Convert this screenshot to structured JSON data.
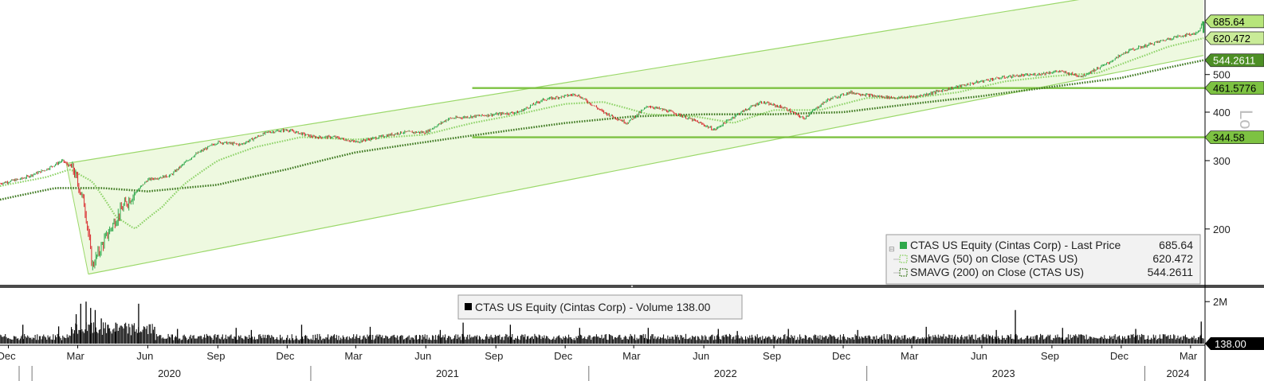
{
  "chart_data": [
    {
      "type": "line",
      "title": "",
      "xlabel": "",
      "ylabel": "",
      "y_scale": "log",
      "ylim": [
        145,
        760
      ],
      "y_ticks": [
        200,
        300,
        400,
        500
      ],
      "grid": false,
      "legend_position": "bottom-right",
      "x_range": [
        "2019-11-20",
        "2024-03-20"
      ],
      "x_month_ticks": [
        {
          "label": "Dec",
          "date": "2019-12-01"
        },
        {
          "label": "Mar",
          "date": "2020-03-01"
        },
        {
          "label": "Jun",
          "date": "2020-06-01"
        },
        {
          "label": "Sep",
          "date": "2020-09-01"
        },
        {
          "label": "Dec",
          "date": "2020-12-01"
        },
        {
          "label": "Mar",
          "date": "2021-03-01"
        },
        {
          "label": "Jun",
          "date": "2021-06-01"
        },
        {
          "label": "Sep",
          "date": "2021-09-01"
        },
        {
          "label": "Dec",
          "date": "2021-12-01"
        },
        {
          "label": "Mar",
          "date": "2022-03-01"
        },
        {
          "label": "Jun",
          "date": "2022-06-01"
        },
        {
          "label": "Sep",
          "date": "2022-09-01"
        },
        {
          "label": "Dec",
          "date": "2022-12-01"
        },
        {
          "label": "Mar",
          "date": "2023-03-01"
        },
        {
          "label": "Jun",
          "date": "2023-06-01"
        },
        {
          "label": "Sep",
          "date": "2023-09-01"
        },
        {
          "label": "Dec",
          "date": "2023-12-01"
        },
        {
          "label": "Mar",
          "date": "2024-03-01"
        }
      ],
      "x_year_labels": [
        {
          "label": "2020",
          "date": "2020-07-01"
        },
        {
          "label": "2021",
          "date": "2021-07-01"
        },
        {
          "label": "2022",
          "date": "2022-07-01"
        },
        {
          "label": "2023",
          "date": "2023-07-01"
        },
        {
          "label": "2024",
          "date": "2024-02-15"
        }
      ],
      "series": [
        {
          "name": "CTAS US Equity (Cintas Corp) - Last Price",
          "color": "#2ea84a",
          "last_value": "685.64",
          "points": [
            [
              "2019-11-20",
              262
            ],
            [
              "2019-12-20",
              270
            ],
            [
              "2020-01-20",
              285
            ],
            [
              "2020-02-10",
              300
            ],
            [
              "2020-02-24",
              285
            ],
            [
              "2020-03-10",
              230
            ],
            [
              "2020-03-20",
              160
            ],
            [
              "2020-04-10",
              195
            ],
            [
              "2020-05-01",
              230
            ],
            [
              "2020-06-01",
              268
            ],
            [
              "2020-07-01",
              275
            ],
            [
              "2020-08-01",
              310
            ],
            [
              "2020-09-01",
              335
            ],
            [
              "2020-10-01",
              330
            ],
            [
              "2020-11-05",
              355
            ],
            [
              "2020-12-01",
              360
            ],
            [
              "2021-01-05",
              345
            ],
            [
              "2021-02-01",
              345
            ],
            [
              "2021-03-01",
              335
            ],
            [
              "2021-04-01",
              345
            ],
            [
              "2021-05-01",
              355
            ],
            [
              "2021-06-01",
              355
            ],
            [
              "2021-07-01",
              385
            ],
            [
              "2021-08-01",
              390
            ],
            [
              "2021-09-01",
              395
            ],
            [
              "2021-10-01",
              400
            ],
            [
              "2021-11-01",
              430
            ],
            [
              "2021-12-15",
              445
            ],
            [
              "2022-01-20",
              400
            ],
            [
              "2022-02-20",
              375
            ],
            [
              "2022-03-20",
              415
            ],
            [
              "2022-04-20",
              400
            ],
            [
              "2022-05-20",
              380
            ],
            [
              "2022-06-15",
              360
            ],
            [
              "2022-07-15",
              395
            ],
            [
              "2022-08-15",
              425
            ],
            [
              "2022-09-15",
              410
            ],
            [
              "2022-10-10",
              385
            ],
            [
              "2022-11-10",
              430
            ],
            [
              "2022-12-10",
              450
            ],
            [
              "2023-01-10",
              440
            ],
            [
              "2023-02-10",
              435
            ],
            [
              "2023-03-10",
              440
            ],
            [
              "2023-04-10",
              455
            ],
            [
              "2023-05-10",
              470
            ],
            [
              "2023-06-10",
              485
            ],
            [
              "2023-07-10",
              495
            ],
            [
              "2023-08-10",
              500
            ],
            [
              "2023-09-10",
              510
            ],
            [
              "2023-10-10",
              495
            ],
            [
              "2023-11-10",
              530
            ],
            [
              "2023-12-10",
              575
            ],
            [
              "2024-01-10",
              600
            ],
            [
              "2024-02-10",
              625
            ],
            [
              "2024-03-10",
              640
            ],
            [
              "2024-03-18",
              685.64
            ]
          ]
        },
        {
          "name": "SMAVG (50) on Close (CTAS US)",
          "color": "#8fd36a",
          "last_value": "620.472",
          "points": [
            [
              "2019-11-20",
              258
            ],
            [
              "2020-01-20",
              272
            ],
            [
              "2020-02-20",
              285
            ],
            [
              "2020-03-20",
              265
            ],
            [
              "2020-04-20",
              215
            ],
            [
              "2020-05-15",
              200
            ],
            [
              "2020-06-20",
              228
            ],
            [
              "2020-07-20",
              262
            ],
            [
              "2020-09-01",
              300
            ],
            [
              "2020-10-20",
              325
            ],
            [
              "2020-12-20",
              345
            ],
            [
              "2021-03-01",
              340
            ],
            [
              "2021-06-01",
              350
            ],
            [
              "2021-08-01",
              375
            ],
            [
              "2021-10-01",
              395
            ],
            [
              "2021-12-01",
              420
            ],
            [
              "2022-01-20",
              425
            ],
            [
              "2022-03-20",
              395
            ],
            [
              "2022-05-20",
              390
            ],
            [
              "2022-07-10",
              375
            ],
            [
              "2022-09-01",
              405
            ],
            [
              "2022-11-01",
              405
            ],
            [
              "2023-01-01",
              435
            ],
            [
              "2023-03-01",
              435
            ],
            [
              "2023-05-01",
              450
            ],
            [
              "2023-07-01",
              480
            ],
            [
              "2023-09-01",
              495
            ],
            [
              "2023-11-01",
              505
            ],
            [
              "2024-01-01",
              560
            ],
            [
              "2024-02-01",
              590
            ],
            [
              "2024-03-18",
              620.472
            ]
          ]
        },
        {
          "name": "SMAVG (200) on Close (CTAS US)",
          "color": "#3f7a22",
          "last_value": "544.2611",
          "points": [
            [
              "2019-11-20",
              238
            ],
            [
              "2020-02-01",
              255
            ],
            [
              "2020-04-01",
              255
            ],
            [
              "2020-06-01",
              250
            ],
            [
              "2020-09-01",
              260
            ],
            [
              "2020-12-01",
              285
            ],
            [
              "2021-03-01",
              315
            ],
            [
              "2021-06-01",
              335
            ],
            [
              "2021-09-01",
              355
            ],
            [
              "2021-12-01",
              375
            ],
            [
              "2022-03-01",
              390
            ],
            [
              "2022-06-01",
              395
            ],
            [
              "2022-09-01",
              395
            ],
            [
              "2022-12-01",
              400
            ],
            [
              "2023-03-01",
              420
            ],
            [
              "2023-06-01",
              440
            ],
            [
              "2023-09-01",
              465
            ],
            [
              "2023-12-01",
              490
            ],
            [
              "2024-03-18",
              544.2611
            ]
          ]
        }
      ],
      "channel": {
        "color": "#9bd86a",
        "fill": "#eef9e0",
        "upper": [
          [
            "2020-02-15",
            295
          ],
          [
            "2023-09-01",
            760
          ]
        ],
        "lower": [
          [
            "2020-03-15",
            153
          ],
          [
            "2024-03-18",
            560
          ]
        ]
      },
      "horizontal_levels": [
        {
          "value": 461.5776,
          "label": "461.5776",
          "from": "2021-08-01",
          "color": "#7dc242"
        },
        {
          "value": 344.58,
          "label": "344.58",
          "from": "2021-08-01",
          "color": "#7dc242"
        }
      ],
      "price_tags": [
        {
          "label": "685.64",
          "value": 685.64,
          "bg": "#b7e57b",
          "fg": "#000000"
        },
        {
          "label": "620.472",
          "value": 620.472,
          "bg": "#c9eb98",
          "fg": "#000000"
        },
        {
          "label": "544.2611",
          "value": 544.2611,
          "bg": "#4d8f25",
          "fg": "#ffffff"
        },
        {
          "label": "461.5776",
          "value": 461.5776,
          "bg": "#7dc242",
          "fg": "#000000"
        },
        {
          "label": "344.58",
          "value": 344.58,
          "bg": "#7dc242",
          "fg": "#000000"
        }
      ],
      "side_watermark": "Lo",
      "legend": [
        {
          "text": "CTAS US Equity (Cintas Corp) - Last Price",
          "value": "685.64"
        },
        {
          "text": "SMAVG (50)  on Close (CTAS US)",
          "value": "620.472"
        },
        {
          "text": "SMAVG (200)  on Close (CTAS US)",
          "value": "544.2611"
        }
      ]
    },
    {
      "type": "bar",
      "title": "",
      "ylim": [
        0,
        2500000
      ],
      "y_ticks": [
        {
          "label": "2M",
          "value": 2000000
        }
      ],
      "legend": [
        {
          "text": "CTAS US Equity (Cintas Corp) - Volume 138.00"
        }
      ],
      "last_value_tag": "138.00",
      "baseline_volume": 330000,
      "volume_spikes": [
        [
          "2019-12-20",
          900000
        ],
        [
          "2020-02-05",
          820000
        ],
        [
          "2020-02-28",
          1400000
        ],
        [
          "2020-03-05",
          1900000
        ],
        [
          "2020-03-12",
          2000000
        ],
        [
          "2020-03-18",
          1700000
        ],
        [
          "2020-03-24",
          1600000
        ],
        [
          "2020-04-01",
          1200000
        ],
        [
          "2020-04-10",
          900000
        ],
        [
          "2020-04-20",
          1000000
        ],
        [
          "2020-05-20",
          1900000
        ],
        [
          "2020-06-10",
          800000
        ],
        [
          "2020-07-10",
          700000
        ],
        [
          "2020-09-25",
          750000
        ],
        [
          "2020-10-15",
          650000
        ],
        [
          "2020-12-20",
          900000
        ],
        [
          "2021-03-20",
          800000
        ],
        [
          "2021-06-20",
          650000
        ],
        [
          "2021-07-20",
          1000000
        ],
        [
          "2021-09-20",
          900000
        ],
        [
          "2021-12-20",
          750000
        ],
        [
          "2022-03-20",
          750000
        ],
        [
          "2022-06-20",
          700000
        ],
        [
          "2022-07-15",
          600000
        ],
        [
          "2022-09-20",
          700000
        ],
        [
          "2022-12-20",
          650000
        ],
        [
          "2023-03-20",
          800000
        ],
        [
          "2023-06-20",
          650000
        ],
        [
          "2023-07-15",
          1600000
        ],
        [
          "2023-09-15",
          750000
        ],
        [
          "2023-12-20",
          700000
        ],
        [
          "2024-03-15",
          1050000
        ],
        [
          "2024-03-18",
          138
        ]
      ]
    }
  ]
}
